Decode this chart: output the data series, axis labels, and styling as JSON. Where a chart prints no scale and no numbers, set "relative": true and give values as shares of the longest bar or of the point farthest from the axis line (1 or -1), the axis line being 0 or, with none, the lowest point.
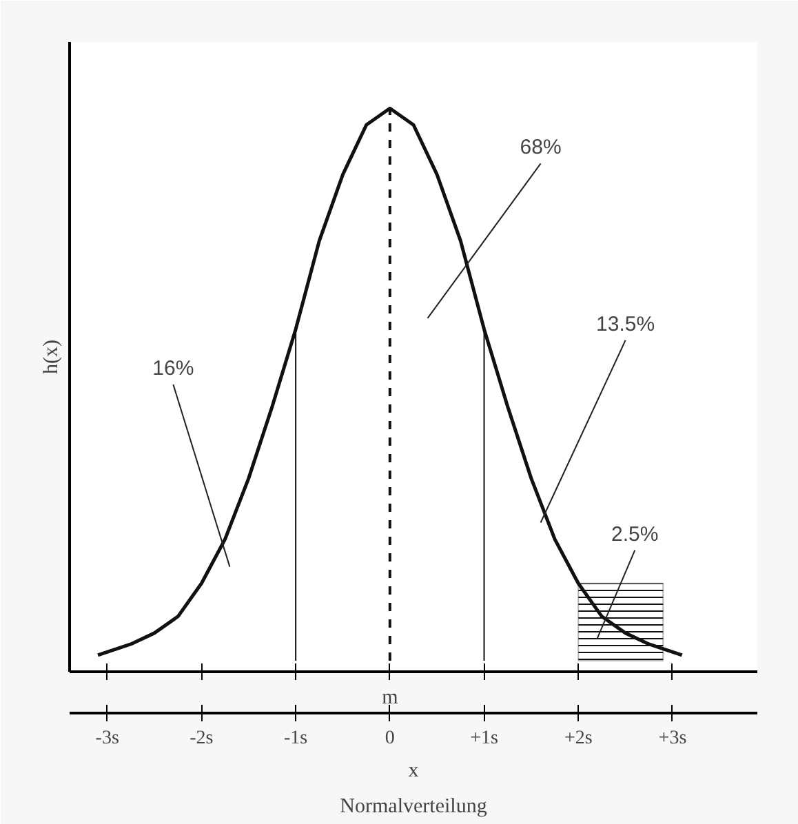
{
  "chart_data": {
    "type": "line",
    "relative": true,
    "xlabel": "x",
    "ylabel": "h(x)",
    "x": [
      -3.1,
      -2.75,
      -2.5,
      -2.25,
      -2,
      -1.75,
      -1.5,
      -1.25,
      -1,
      -0.75,
      -0.5,
      -0.25,
      0,
      0.25,
      0.5,
      0.75,
      1,
      1.25,
      1.5,
      1.75,
      2,
      2.25,
      2.5,
      2.75,
      3.1
    ],
    "series": [
      {
        "color": "#111111",
        "values": [
          0.01,
          0.03,
          0.05,
          0.08,
          0.14,
          0.22,
          0.33,
          0.46,
          0.6,
          0.76,
          0.88,
          0.97,
          1,
          0.97,
          0.88,
          0.76,
          0.6,
          0.46,
          0.33,
          0.22,
          0.14,
          0.08,
          0.05,
          0.03,
          0.01
        ]
      }
    ],
    "xlim": [
      -3.4,
      3.9
    ],
    "xticks": [
      {
        "value": -3,
        "label": "-3s"
      },
      {
        "value": -2,
        "label": "-2s"
      },
      {
        "value": -1,
        "label": "-1s"
      },
      0,
      {
        "value": 1,
        "label": "+1s"
      },
      {
        "value": 2,
        "label": "+2s"
      },
      {
        "value": 3,
        "label": "+3s"
      }
    ],
    "tick_labels": "x",
    "grid": false,
    "marker": "none",
    "line_style": "solid",
    "ref_lines": [
      {
        "axis": "x",
        "value": -1,
        "line_style": "solid"
      },
      {
        "axis": "x",
        "value": 0,
        "label": "m",
        "line_style": "dashed"
      },
      {
        "axis": "x",
        "value": 1,
        "line_style": "solid"
      }
    ],
    "bands": [
      {
        "axis": "x",
        "from": 2,
        "to": 2.9,
        "color": "#111111"
      }
    ],
    "annotations": [
      "68%",
      "13.5%",
      "16%",
      "2.5%",
      "Normalverteilung"
    ]
  }
}
